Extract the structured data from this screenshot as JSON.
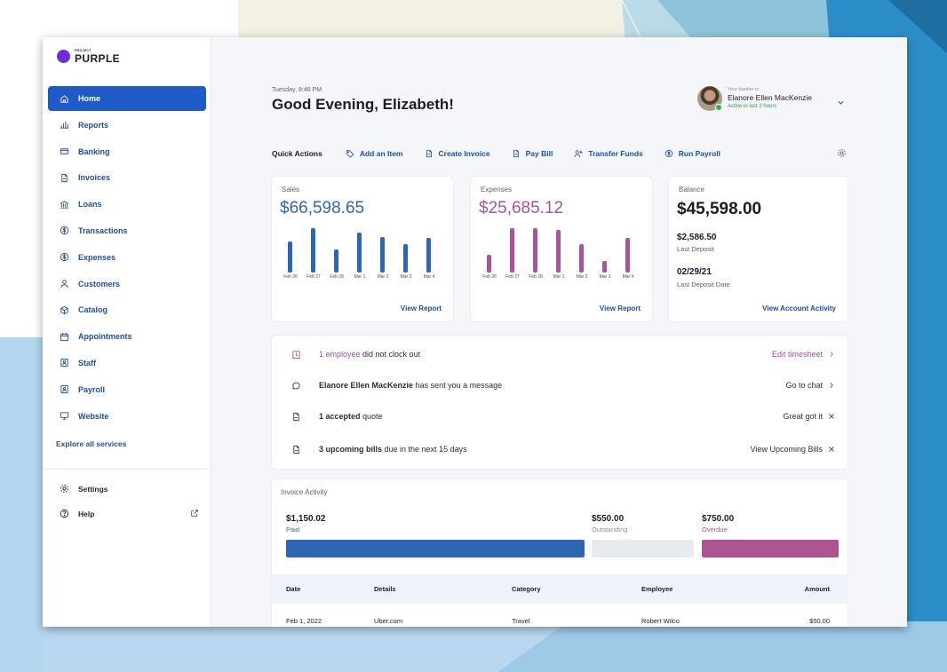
{
  "theme": {
    "accent": "#1e5bc6",
    "sales_color": "#2f66b4",
    "expenses_color": "#a8549a",
    "overdue_color": "#ad5593",
    "brand_dot": "#6a2fd6"
  },
  "brand": {
    "small": "PROJECT",
    "name": "PURPLE"
  },
  "sidebar": {
    "items": [
      {
        "label": "Home",
        "icon": "home-icon",
        "active": true
      },
      {
        "label": "Reports",
        "icon": "bar-chart-icon"
      },
      {
        "label": "Banking",
        "icon": "card-icon"
      },
      {
        "label": "Invoices",
        "icon": "document-icon"
      },
      {
        "label": "Loans",
        "icon": "bank-icon"
      },
      {
        "label": "Transactions",
        "icon": "dollar-circle-icon"
      },
      {
        "label": "Expenses",
        "icon": "dollar-circle-icon"
      },
      {
        "label": "Customers",
        "icon": "person-icon"
      },
      {
        "label": "Catalog",
        "icon": "box-icon"
      },
      {
        "label": "Appointments",
        "icon": "calendar-icon"
      },
      {
        "label": "Staff",
        "icon": "id-badge-icon"
      },
      {
        "label": "Payroll",
        "icon": "id-badge-icon"
      },
      {
        "label": "Website",
        "icon": "monitor-icon"
      }
    ],
    "explore": "Explore all services",
    "settings": "Settings",
    "help": "Help"
  },
  "header": {
    "dateline": "Tuesday, 8:46 PM",
    "greeting": "Good Evening, Elizabeth!",
    "banker_caption": "Your banker is",
    "banker_name": "Elanore Ellen MacKenzie",
    "banker_status": "Active in last 2 hours"
  },
  "quick_actions": {
    "label": "Quick Actions",
    "items": [
      {
        "label": "Add an Item",
        "icon": "tag-icon"
      },
      {
        "label": "Create Invoice",
        "icon": "document-icon"
      },
      {
        "label": "Pay Bill",
        "icon": "document-icon"
      },
      {
        "label": "Transfer Funds",
        "icon": "person-add-icon"
      },
      {
        "label": "Run Payroll",
        "icon": "dollar-circle-icon"
      }
    ]
  },
  "sales": {
    "label": "Sales",
    "amount": "$66,598.65",
    "link": "View Report",
    "chart_data": {
      "type": "bar",
      "categories": [
        "Feb 26",
        "Feb 27",
        "Feb 28",
        "Mar 1",
        "Mar 2",
        "Mar 3",
        "Mar 4"
      ],
      "values": [
        36,
        52,
        27,
        47,
        42,
        33,
        40
      ],
      "ylim": [
        0,
        55
      ]
    }
  },
  "expenses": {
    "label": "Expenses",
    "amount": "$25,685.12",
    "link": "View Report",
    "chart_data": {
      "type": "bar",
      "categories": [
        "Feb 26",
        "Feb 27",
        "Feb 28",
        "Mar 1",
        "Mar 2",
        "Mar 3",
        "Mar 4"
      ],
      "values": [
        21,
        52,
        52,
        50,
        33,
        14,
        40
      ],
      "ylim": [
        0,
        55
      ]
    }
  },
  "balance": {
    "label": "Balance",
    "amount": "$45,598.00",
    "last_deposit_value": "$2,586.50",
    "last_deposit_label": "Last Deposit",
    "last_deposit_date_value": "02/29/21",
    "last_deposit_date_label": "Last Deposit Date",
    "link": "View Account Activity"
  },
  "notifications": [
    {
      "icon": "clock-badge-icon",
      "highlight": "1 employee",
      "text": " did not clock out",
      "action": "Edit timesheet",
      "action_icon": "chevron-right-icon"
    },
    {
      "icon": "chat-icon",
      "highlight": "Elanore Ellen MacKenzie",
      "text": " has sent you a message",
      "action": "Go to chat",
      "action_icon": "chevron-right-icon"
    },
    {
      "icon": "document-icon",
      "highlight": "1 accepted",
      "text": " quote",
      "action": "Great got it",
      "action_icon": "close-icon"
    },
    {
      "icon": "document-icon",
      "highlight": "3 upcoming bills",
      "text": " due in the next 15 days",
      "action": "View Upcoming Bills",
      "action_icon": "close-icon"
    }
  ],
  "invoice_activity": {
    "title": "Invoice Activity",
    "paid": {
      "amount": "$1,150.02",
      "label": "Paid"
    },
    "outstanding": {
      "amount": "$550.00",
      "label": "Outstanding"
    },
    "overdue": {
      "amount": "$750.00",
      "label": "Overdue"
    },
    "columns": [
      "Date",
      "Details",
      "Category",
      "Employee",
      "Amount"
    ],
    "rows": [
      [
        "Feb 1, 2022",
        "Uber.com",
        "Travel",
        "Robert Wilco",
        "$50.00"
      ]
    ]
  }
}
